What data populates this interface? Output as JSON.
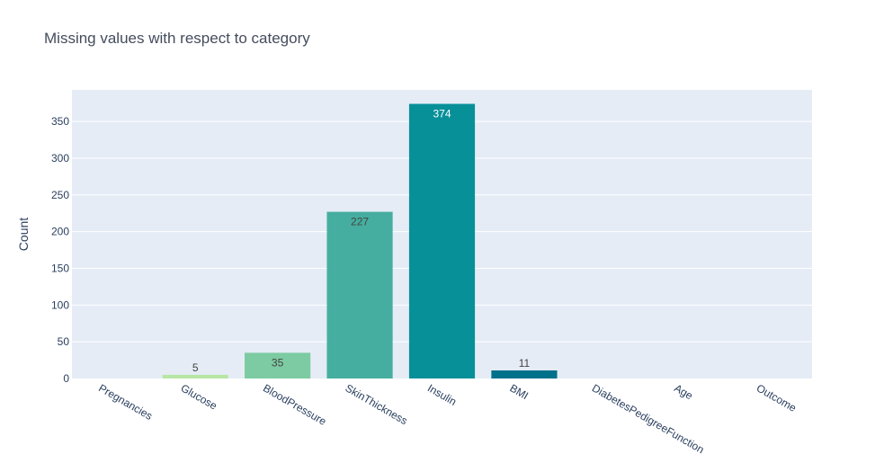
{
  "chart_data": {
    "type": "bar",
    "title": "Missing values with respect to category",
    "xlabel": "",
    "ylabel": "Count",
    "ylim": [
      0,
      393
    ],
    "yticks": [
      0,
      50,
      100,
      150,
      200,
      250,
      300,
      350
    ],
    "grid": true,
    "categories": [
      "Pregnancies",
      "Glucose",
      "BloodPressure",
      "SkinThickness",
      "Insulin",
      "BMI",
      "DiabetesPedigreeFunction",
      "Age",
      "Outcome"
    ],
    "values": [
      0,
      5,
      35,
      227,
      374,
      11,
      0,
      0,
      0
    ],
    "data_labels": [
      "",
      "5",
      "35",
      "227",
      "374",
      "11",
      "",
      "",
      ""
    ],
    "colors": [
      "#b7e6a5",
      "#b7e6a5",
      "#7ccba2",
      "#46aea0",
      "#089099",
      "#00718b",
      "#00718b",
      "#00718b",
      "#00718b"
    ],
    "label_colors": [
      "#444444",
      "#444444",
      "#444444",
      "#444444",
      "#ffffff",
      "#444444",
      "#444444",
      "#444444",
      "#444444"
    ],
    "plot_bgcolor": "#e5ecf6",
    "gridcolor": "#ffffff"
  }
}
